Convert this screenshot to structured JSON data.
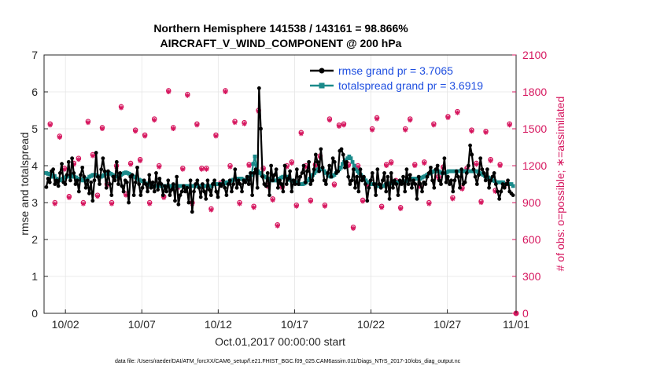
{
  "chart_data": {
    "type": "line",
    "title_line1": "Northern Hemisphere 141538 / 143161 = 98.866%",
    "title_line2": "AIRCRAFT_V_WIND_COMPONENT @ 200 hPa",
    "ylabel": "rmse and totalspread",
    "ylabel_right": "# of obs: o=possible; ∗=assimilated",
    "xlabel": "Oct.01,2017 00:00:00 start",
    "footer": "data file: /Users/raeder/DAI/ATM_forcXX/CAM6_setup/f.e21.FHIST_BGC.f09_025.CAM6assim.011/Diags_NTrS_2017-10/obs_diag_output.nc",
    "xlim": [
      0.6,
      31.5
    ],
    "ylim": [
      0,
      7
    ],
    "ylim_right": [
      0,
      2100
    ],
    "yticks": [
      0,
      1,
      2,
      3,
      4,
      5,
      6,
      7
    ],
    "yticks_right": [
      0,
      300,
      600,
      900,
      1200,
      1500,
      1800,
      2100
    ],
    "xticks": [
      {
        "value": 2,
        "label": "10/02"
      },
      {
        "value": 7,
        "label": "10/07"
      },
      {
        "value": 12,
        "label": "10/12"
      },
      {
        "value": 17,
        "label": "10/17"
      },
      {
        "value": 22,
        "label": "10/22"
      },
      {
        "value": 27,
        "label": "10/27"
      },
      {
        "value": 32,
        "label": "11/01"
      }
    ],
    "legend": [
      {
        "name": "rmse grand pr = 3.7065",
        "color": "#000000"
      },
      {
        "name": "totalspread grand pr = 3.6919",
        "color": "#1a8a8a"
      }
    ],
    "colors": {
      "rmse": "#000000",
      "spread": "#1a8a8a",
      "obs": "#d6175f",
      "grid": "#e5e5e5"
    },
    "series": [
      {
        "name": "rmse",
        "values": [
          3.42,
          3.65,
          3.55,
          3.85,
          3.9,
          3.5,
          3.6,
          3.45,
          3.8,
          4.05,
          3.55,
          3.5,
          3.75,
          4.1,
          3.6,
          4.2,
          3.8,
          3.5,
          3.6,
          3.3,
          3.75,
          3.95,
          3.7,
          3.4,
          3.6,
          3.25,
          3.55,
          3.05,
          3.6,
          4.35,
          3.7,
          3.5,
          3.9,
          4.2,
          3.85,
          3.4,
          3.85,
          3.5,
          3.2,
          3.7,
          3.6,
          4.1,
          3.5,
          3.8,
          3.45,
          3.3,
          3.6,
          3.55,
          3.0,
          3.7,
          3.75,
          3.2,
          3.55,
          3.95,
          3.5,
          3.2,
          3.4,
          3.6,
          3.5,
          3.3,
          3.75,
          3.4,
          3.55,
          3.3,
          3.8,
          3.35,
          3.65,
          3.5,
          3.2,
          3.45,
          3.3,
          3.6,
          3.2,
          3.35,
          3.5,
          3.05,
          3.7,
          2.95,
          3.2,
          3.3,
          3.45,
          3.3,
          3.4,
          3.0,
          3.6,
          2.75,
          3.3,
          3.5,
          3.6,
          3.4,
          3.15,
          3.5,
          3.3,
          3.1,
          3.6,
          3.35,
          3.2,
          3.5,
          3.6,
          3.3,
          3.15,
          3.5,
          3.45,
          3.6,
          3.4,
          3.2,
          3.5,
          3.6,
          3.3,
          3.5,
          3.9,
          3.4,
          3.6,
          3.5,
          3.3,
          3.6,
          3.55,
          3.7,
          3.5,
          3.8,
          3.2,
          3.8,
          3.9,
          3.4,
          6.1,
          5.0,
          3.7,
          3.5,
          3.45,
          3.8,
          3.2,
          4.0,
          3.6,
          3.75,
          3.9,
          3.4,
          3.6,
          3.5,
          3.3,
          4.0,
          3.5,
          3.65,
          3.85,
          3.3,
          3.6,
          3.5,
          3.9,
          3.5,
          3.7,
          3.8,
          4.0,
          3.55,
          3.85,
          4.1,
          3.5,
          3.6,
          3.9,
          4.3,
          4.1,
          3.85,
          4.45,
          3.95,
          3.6,
          3.5,
          3.8,
          4.0,
          3.7,
          4.2,
          4.1,
          3.8,
          3.85,
          4.4,
          4.45,
          4.3,
          3.95,
          4.1,
          3.7,
          3.5,
          3.6,
          3.9,
          3.4,
          3.7,
          3.3,
          3.9,
          3.6,
          3.7,
          3.5,
          3.05,
          3.4,
          3.6,
          3.8,
          3.5,
          3.2,
          3.9,
          3.5,
          3.4,
          3.6,
          3.8,
          3.3,
          3.7,
          3.1,
          3.8,
          3.4,
          3.6,
          3.5,
          3.2,
          3.6,
          3.5,
          3.7,
          3.3,
          3.9,
          3.5,
          3.75,
          3.4,
          3.6,
          3.5,
          3.1,
          3.7,
          3.5,
          3.3,
          3.55,
          3.5,
          3.7,
          3.8,
          3.95,
          3.6,
          3.4,
          3.9,
          4.0,
          3.6,
          3.5,
          3.8,
          4.2,
          3.55,
          3.7,
          3.5,
          3.6,
          3.3,
          3.6,
          3.85,
          3.7,
          3.4,
          3.9,
          3.5,
          3.55,
          3.8,
          4.0,
          4.55,
          4.3,
          3.9,
          3.7,
          3.5,
          3.75,
          4.2,
          3.9,
          3.8,
          3.6,
          3.9,
          3.4,
          3.6,
          3.7,
          3.8,
          3.5,
          3.3,
          3.1,
          3.3,
          3.5,
          3.4,
          3.5,
          3.6,
          3.3,
          3.25,
          3.2
        ]
      },
      {
        "name": "totalspread",
        "values": [
          3.8,
          3.78,
          3.77,
          3.75,
          3.7,
          3.72,
          3.65,
          3.62,
          3.6,
          3.62,
          3.65,
          3.68,
          3.7,
          3.7,
          3.72,
          3.75,
          3.7,
          3.7,
          3.68,
          3.65,
          3.65,
          3.63,
          3.6,
          3.6,
          3.62,
          3.65,
          3.7,
          3.72,
          3.75,
          3.75,
          3.75,
          3.72,
          3.7,
          3.7,
          3.72,
          3.75,
          3.78,
          3.8,
          3.8,
          3.78,
          3.75,
          3.72,
          3.7,
          3.7,
          3.72,
          3.75,
          3.78,
          3.8,
          3.82,
          3.8,
          3.78,
          3.75,
          3.72,
          3.7,
          3.68,
          3.65,
          3.62,
          3.6,
          3.58,
          3.55,
          3.52,
          3.5,
          3.5,
          3.48,
          3.45,
          3.45,
          3.45,
          3.45,
          3.45,
          3.45,
          3.45,
          3.45,
          3.45,
          3.45,
          3.45,
          3.45,
          3.45,
          3.45,
          3.45,
          3.45,
          3.45,
          3.45,
          3.45,
          3.45,
          3.45,
          3.45,
          3.45,
          3.45,
          3.45,
          3.45,
          3.45,
          3.45,
          3.45,
          3.45,
          3.45,
          3.45,
          3.45,
          3.45,
          3.45,
          3.45,
          3.45,
          3.5,
          3.5,
          3.5,
          3.5,
          3.5,
          3.5,
          3.5,
          3.52,
          3.55,
          3.55,
          3.58,
          3.6,
          3.62,
          3.62,
          3.65,
          3.65,
          3.65,
          3.65,
          3.62,
          3.6,
          3.62,
          3.65,
          3.7,
          3.75,
          4.05,
          4.25,
          4.0,
          3.85,
          3.8,
          3.75,
          3.72,
          3.7,
          3.68,
          3.65,
          3.62,
          3.6,
          3.6,
          3.6,
          3.6,
          3.62,
          3.65,
          3.68,
          3.7,
          3.7,
          3.7,
          3.65,
          3.62,
          3.6,
          3.58,
          3.55,
          3.55,
          3.55,
          3.5,
          3.5,
          3.5,
          3.52,
          3.55,
          3.6,
          3.65,
          3.7,
          3.75,
          3.8,
          3.85,
          3.9,
          3.9,
          3.9,
          3.9,
          3.85,
          3.8,
          3.75,
          3.72,
          3.7,
          3.72,
          3.75,
          3.8,
          3.85,
          3.9,
          3.95,
          4.05,
          4.1,
          4.15,
          4.2,
          4.25,
          4.2,
          4.1,
          4.0,
          3.9,
          3.85,
          3.8,
          3.75,
          3.7,
          3.65,
          3.6,
          3.55,
          3.55,
          3.5,
          3.5,
          3.5,
          3.45,
          3.45,
          3.45,
          3.45,
          3.45,
          3.45,
          3.48,
          3.5,
          3.5,
          3.52,
          3.55,
          3.55,
          3.55,
          3.55,
          3.55,
          3.55,
          3.55,
          3.55,
          3.58,
          3.6,
          3.62,
          3.65,
          3.65,
          3.65,
          3.65,
          3.65,
          3.65,
          3.65,
          3.68,
          3.7,
          3.72,
          3.75,
          3.78,
          3.8,
          3.82,
          3.85,
          3.85,
          3.85,
          3.85,
          3.82,
          3.8,
          3.8,
          3.8,
          3.82,
          3.85,
          3.85,
          3.85,
          3.85,
          3.85,
          3.85,
          3.85,
          3.85,
          3.85,
          3.85,
          3.85,
          3.85,
          3.85,
          3.85,
          3.85,
          3.85,
          3.85,
          3.85,
          3.82,
          3.8,
          3.78,
          3.75,
          3.72,
          3.7,
          3.68,
          3.65,
          3.62,
          3.6,
          3.58,
          3.55,
          3.55,
          3.55,
          3.55,
          3.55,
          3.5,
          3.5,
          3.5,
          3.5,
          3.5,
          3.45
        ]
      },
      {
        "name": "obs_possible",
        "values": [
          1540,
          900,
          1440,
          1180,
          950,
          1220,
          1260,
          900,
          1560,
          1290,
          960,
          1510,
          1050,
          900,
          1200,
          1680,
          970,
          1220,
          1490,
          1250,
          1450,
          900,
          1580,
          1200,
          950,
          1810,
          1510,
          1030,
          1180,
          1780,
          900,
          1540,
          1180,
          1180,
          850,
          1450,
          1060,
          1810,
          1200,
          1560,
          900,
          1550,
          1210,
          870,
          1650,
          1180,
          1040,
          930,
          720,
          1030,
          1200,
          1230,
          880,
          1470,
          1200,
          920,
          1210,
          1280,
          880,
          1580,
          1050,
          1530,
          1540,
          1210,
          700,
          1200,
          920,
          1050,
          1500,
          1590,
          870,
          1210,
          1230,
          1080,
          860,
          1500,
          1580,
          1210,
          1040,
          1230,
          900,
          1540,
          1110,
          1190,
          1600,
          940,
          1640,
          1020,
          1180,
          1490,
          1220,
          910,
          1480,
          1250,
          1000,
          1210,
          1050,
          1540
        ]
      },
      {
        "name": "obs_assimilated",
        "values": [
          1530,
          890,
          1430,
          1170,
          940,
          1210,
          1250,
          890,
          1550,
          1280,
          950,
          1500,
          1040,
          890,
          1190,
          1670,
          960,
          1210,
          1480,
          1240,
          1440,
          890,
          1570,
          1190,
          940,
          1800,
          1500,
          1020,
          1170,
          1770,
          890,
          1530,
          1170,
          1170,
          840,
          1440,
          1050,
          1800,
          1190,
          1550,
          890,
          1540,
          1200,
          860,
          1640,
          1170,
          1030,
          920,
          710,
          1020,
          1190,
          1220,
          870,
          1460,
          1190,
          910,
          1200,
          1270,
          870,
          1570,
          1040,
          1520,
          1530,
          1200,
          690,
          1190,
          910,
          1040,
          1490,
          1580,
          860,
          1200,
          1220,
          1070,
          850,
          1490,
          1570,
          1200,
          1030,
          1220,
          890,
          1530,
          1100,
          1180,
          1590,
          930,
          1630,
          1010,
          1170,
          1480,
          1210,
          900,
          1470,
          1240,
          990,
          1200,
          1040,
          1530
        ]
      }
    ],
    "obs_step": 0.31
  }
}
